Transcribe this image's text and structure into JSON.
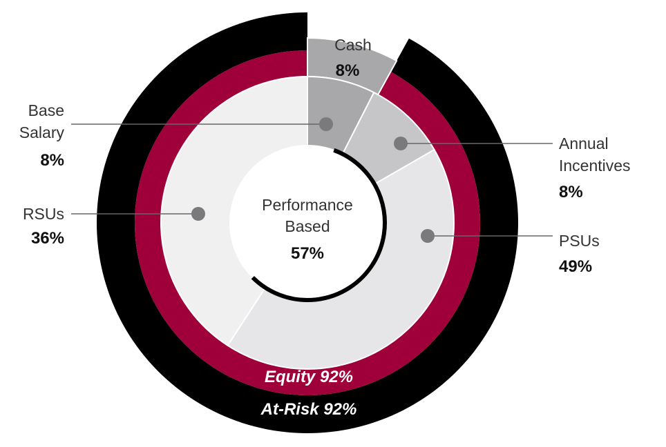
{
  "chart_data": {
    "type": "pie",
    "center_label": "Performance\nBased",
    "center_value": "57%",
    "segments": [
      {
        "name": "Base\nSalary",
        "value": 8,
        "value_label": "8%",
        "color": "#f0f0f0"
      },
      {
        "name": "Annual\nIncentives",
        "value": 8,
        "value_label": "8%",
        "color": "#c6c6c8"
      },
      {
        "name": "PSUs",
        "value": 49,
        "value_label": "49%",
        "color": "#e6e6e8"
      },
      {
        "name": "RSUs",
        "value": 36,
        "value_label": "36%",
        "color": "#f0f0f0"
      }
    ],
    "highlight_segment": {
      "name": "Cash",
      "value_label": "8%",
      "color": "#a8a8aa"
    },
    "rings": [
      {
        "name": "Equity",
        "value": 92,
        "label": "Equity 92%",
        "color": "#a0003a"
      },
      {
        "name": "At-Risk",
        "value": 92,
        "label": "At-Risk 92%",
        "color": "#000000"
      }
    ],
    "performance_arc_value": 57
  }
}
